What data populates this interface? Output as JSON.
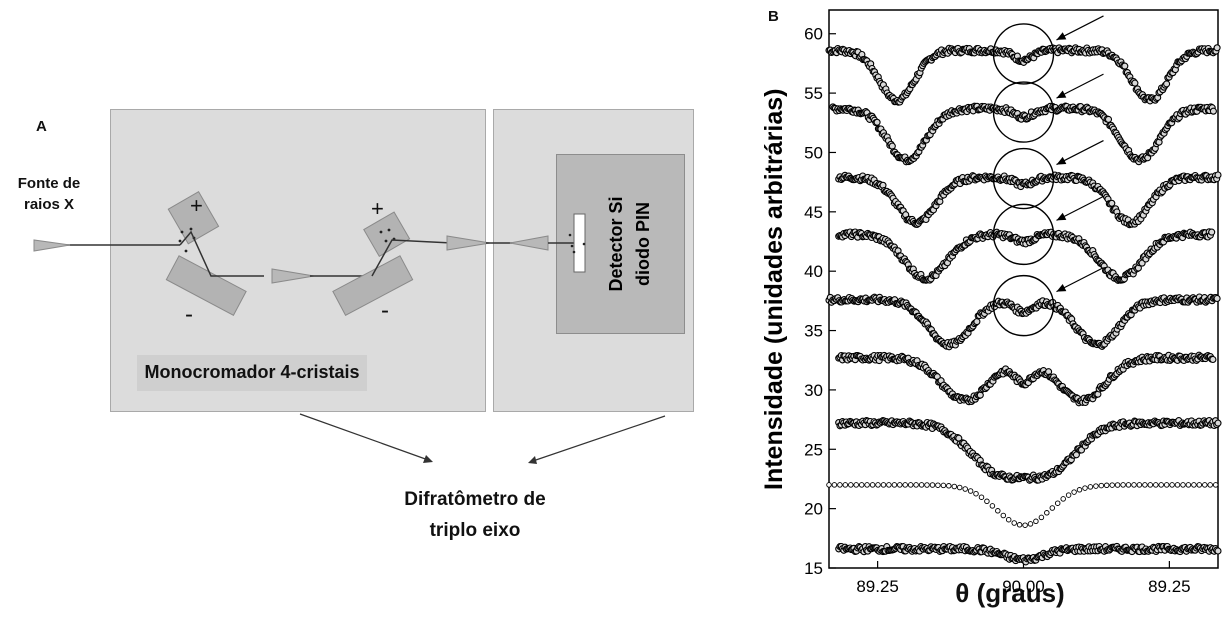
{
  "panel_a": {
    "letter": "A",
    "source_label_line1": "Fonte de",
    "source_label_line2": "raios X",
    "plus_1": "+",
    "minus_1": "-",
    "plus_2": "+",
    "minus_2": "-",
    "detector_label_line1": "Detector Si",
    "detector_label_line2": "diodo PIN",
    "monochromator_label": "Monocromador 4-cristais",
    "diffractometer_label_line1": "Difratômetro de",
    "diffractometer_label_line2": "triplo eixo",
    "colors": {
      "box_fill": "#dcdcdc",
      "detector_fill": "#b9b9b9",
      "crystal_fill": "#b3b3b3"
    }
  },
  "panel_b": {
    "letter": "B",
    "ylabel": "Intensidade (unidades arbitrárias)",
    "xlabel": "θ (graus)"
  },
  "chart_data": {
    "type": "scatter",
    "title": "",
    "xlabel": "θ (graus)",
    "ylabel": "Intensidade (unidades arbitrárias)",
    "xlim": [
      -1.0,
      1.0
    ],
    "ylim": [
      15,
      62
    ],
    "x_ticks": [
      -0.75,
      0.0,
      0.75
    ],
    "x_tick_labels": [
      "89.25",
      "90.00",
      "89.25"
    ],
    "y_ticks": [
      15,
      20,
      25,
      30,
      35,
      40,
      45,
      50,
      55,
      60
    ],
    "y_tick_labels": [
      "15",
      "20",
      "25",
      "30",
      "35",
      "40",
      "45",
      "50",
      "55",
      "60"
    ],
    "grid": false,
    "series": [
      {
        "baseline": 58.6,
        "dip_positions": [
          -0.65,
          0.65
        ],
        "dip_depth": 4.2,
        "dip_width": 0.09,
        "center_dip": 0.8,
        "x_start": -1.0,
        "x_end": 1.0
      },
      {
        "baseline": 53.7,
        "dip_positions": [
          -0.6,
          0.6
        ],
        "dip_depth": 4.3,
        "dip_width": 0.1,
        "center_dip": 0.7,
        "x_start": -0.98,
        "x_end": 0.98
      },
      {
        "baseline": 47.9,
        "dip_positions": [
          -0.55,
          0.55
        ],
        "dip_depth": 3.8,
        "dip_width": 0.1,
        "center_dip": 0.6,
        "x_start": -0.95,
        "x_end": 1.0
      },
      {
        "baseline": 43.1,
        "dip_positions": [
          -0.5,
          0.5
        ],
        "dip_depth": 3.7,
        "dip_width": 0.11,
        "center_dip": 0.6,
        "x_start": -0.95,
        "x_end": 0.97
      },
      {
        "baseline": 37.6,
        "dip_positions": [
          -0.38,
          0.38
        ],
        "dip_depth": 3.8,
        "dip_width": 0.11,
        "center_dip": 1.0,
        "x_start": -1.0,
        "x_end": 1.0
      },
      {
        "baseline": 32.7,
        "dip_positions": [
          -0.3,
          0.3
        ],
        "dip_depth": 3.6,
        "dip_width": 0.12,
        "center_dip": 1.8,
        "x_start": -0.95,
        "x_end": 0.98
      },
      {
        "baseline": 27.2,
        "dip_positions": [
          -0.14,
          0.14
        ],
        "dip_depth": 3.8,
        "dip_width": 0.14,
        "center_dip": 0,
        "x_start": -0.95,
        "x_end": 1.0
      },
      {
        "baseline": 22.0,
        "dip_positions": [
          0.0
        ],
        "dip_depth": 3.4,
        "dip_width": 0.14,
        "center_dip": 0,
        "x_start": -1.0,
        "x_end": 1.0
      },
      {
        "baseline": 16.6,
        "dip_positions": [
          0.0
        ],
        "dip_depth": 0.9,
        "dip_width": 0.1,
        "center_dip": 0,
        "x_start": -0.95,
        "x_end": 1.0
      }
    ],
    "annotations": [
      {
        "type": "circle",
        "x": 0.0,
        "y": 58.3
      },
      {
        "type": "circle",
        "x": 0.0,
        "y": 53.4
      },
      {
        "type": "circle",
        "x": 0.0,
        "y": 47.8
      },
      {
        "type": "circle",
        "x": 0.0,
        "y": 43.1
      },
      {
        "type": "circle",
        "x": 0.0,
        "y": 37.1
      }
    ]
  }
}
